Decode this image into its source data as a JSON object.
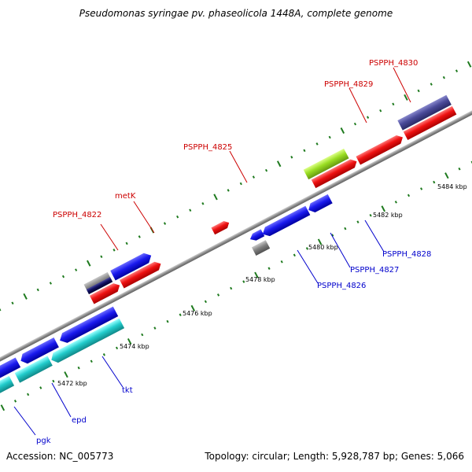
{
  "title": "Pseudomonas syringae pv. phaseolicola 1448A, complete genome",
  "accession": "Accession: NC_005773",
  "summary": "Topology: circular; Length: 5,928,787 bp; Genes: 5,066",
  "colors": {
    "backbone": "#8c8c8c",
    "tick": "#1e7a1e",
    "forward_label": "#cc0000",
    "reverse_label": "#0000cc",
    "red": "#ee1111",
    "blue": "#1a1aee",
    "cyan": "#22cccc",
    "gray": "#808080",
    "navy": "#101060",
    "lime": "#99dd22",
    "slate": "#4a4a99"
  },
  "axis_labels": [
    "5472 kbp",
    "5474 kbp",
    "5476 kbp",
    "5478 kbp",
    "5480 kbp",
    "5482 kbp",
    "5484 kbp"
  ],
  "forward_gene_labels": [
    "PSPPH_4822",
    "metK",
    "PSPPH_4825",
    "PSPPH_4829",
    "PSPPH_4830"
  ],
  "reverse_gene_labels": [
    "pgk",
    "epd",
    "tkt",
    "PSPPH_4826",
    "PSPPH_4827",
    "PSPPH_4828"
  ]
}
